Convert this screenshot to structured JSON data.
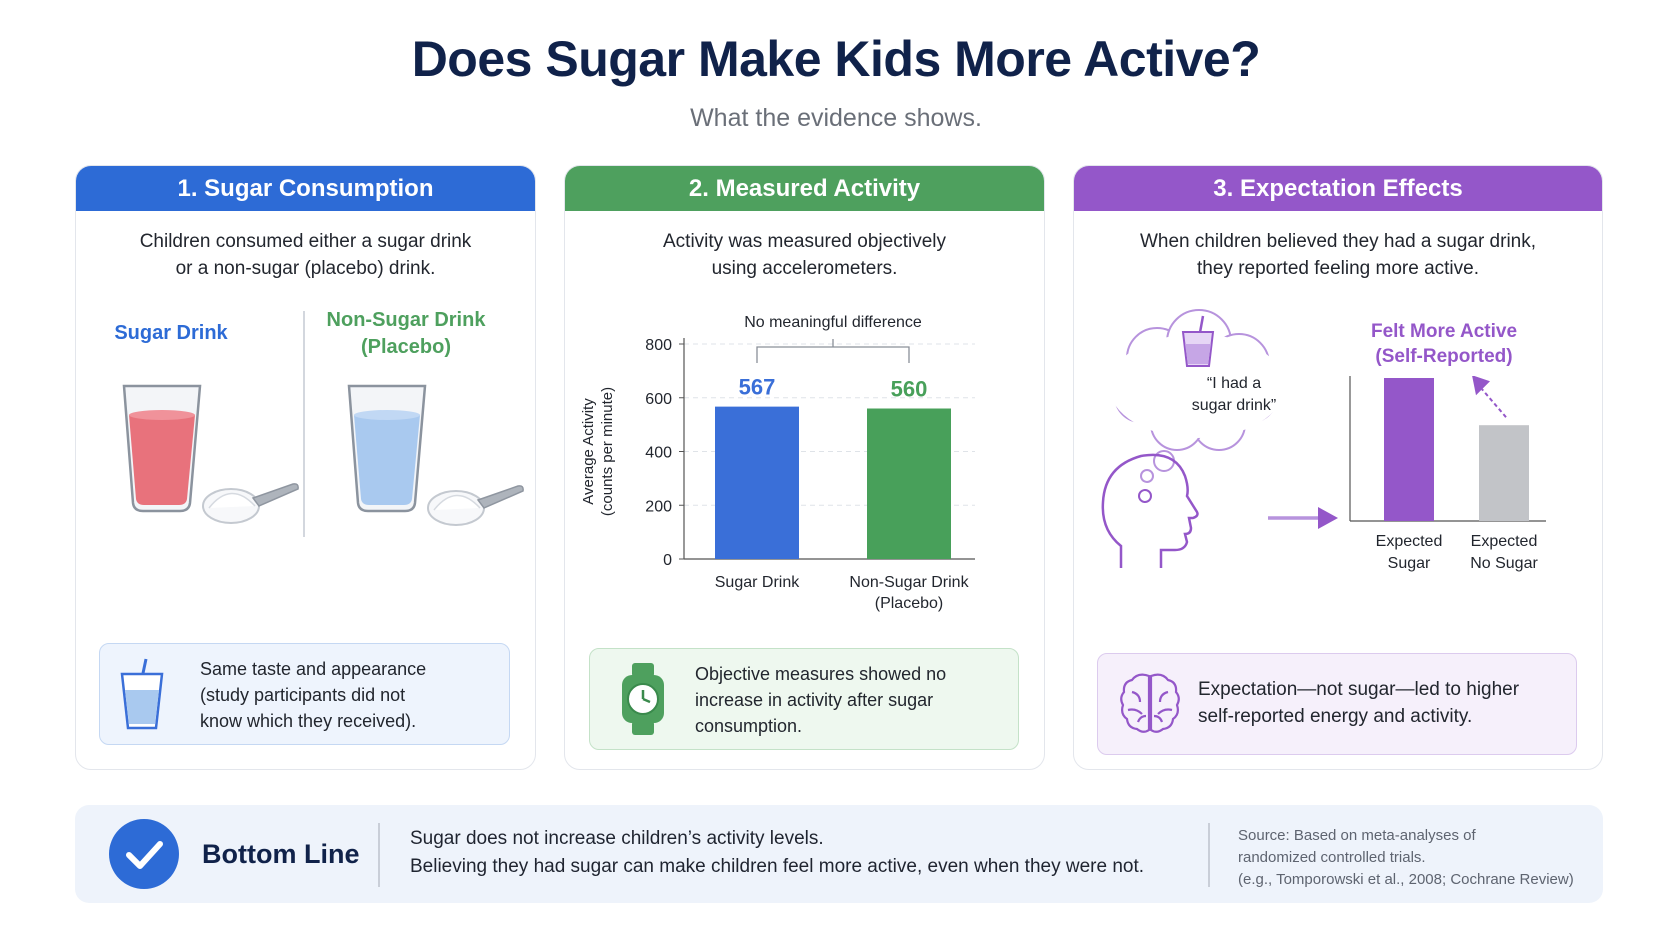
{
  "title": "Does Sugar Make Kids More Active?",
  "subtitle": "What the evidence shows.",
  "panels": [
    {
      "heading": "1. Sugar Consumption",
      "desc_lines": [
        "Children consumed either a sugar drink",
        "or a non-sugar (placebo) drink."
      ],
      "sugar_label": "Sugar Drink",
      "placebo_label_lines": [
        "Non-Sugar Drink",
        "(Placebo)"
      ],
      "callout_lines": [
        "Same taste and appearance",
        "(study participants did not",
        "know which they received)."
      ]
    },
    {
      "heading": "2. Measured Activity",
      "desc_lines": [
        "Activity was measured objectively",
        "using accelerometers."
      ],
      "callout_lines": [
        "Objective measures showed no",
        "increase in activity after sugar",
        "consumption."
      ]
    },
    {
      "heading": "3. Expectation Effects",
      "desc_lines": [
        "When children believed they had a sugar drink,",
        "they reported feeling more active."
      ],
      "thought_lines": [
        "“I had a",
        "sugar drink”"
      ],
      "chart_title_lines": [
        "Felt More Active",
        "(Self-Reported)"
      ],
      "callout_lines": [
        "Expectation—not sugar—led to higher",
        "self-reported energy and activity."
      ]
    }
  ],
  "chart_data": [
    {
      "type": "bar",
      "annotation": "No meaningful difference",
      "categories": [
        "Sugar Drink",
        "Non-Sugar Drink (Placebo)"
      ],
      "category_lines": [
        [
          "Sugar Drink"
        ],
        [
          "Non-Sugar Drink",
          "(Placebo)"
        ]
      ],
      "values": [
        567,
        560
      ],
      "value_labels": [
        "567",
        "560"
      ],
      "ylabel_lines": [
        "Average Activity",
        "(counts per minute)"
      ],
      "ylim": [
        0,
        800
      ],
      "yticks": [
        0,
        200,
        400,
        600,
        800
      ],
      "ytick_labels": [
        "0",
        "200",
        "400",
        "600",
        "800"
      ],
      "grid": true,
      "colors": [
        "#3a6fd8",
        "#48a05a"
      ]
    },
    {
      "type": "bar",
      "title": "Felt More Active (Self-Reported)",
      "categories": [
        "Expected Sugar",
        "Expected No Sugar"
      ],
      "category_lines": [
        [
          "Expected",
          "Sugar"
        ],
        [
          "Expected",
          "No Sugar"
        ]
      ],
      "values": [
        1.0,
        0.67
      ],
      "colors": [
        "#9457c9",
        "#c2c4c8"
      ]
    }
  ],
  "bottom": {
    "title": "Bottom Line",
    "lines": [
      "Sugar does not increase children’s activity levels.",
      "Believing they had sugar can make children feel more active, even when they were not."
    ],
    "source_lines": [
      "Source: Based on meta-analyses of",
      "randomized controlled trials.",
      "(e.g., Tomporowski et al., 2008; Cochrane Review)"
    ]
  },
  "colors": {
    "blue": "#2d6bd6",
    "green": "#4ea05e",
    "purple": "#9457c9",
    "navy": "#10224a"
  },
  "icons": [
    "sugar-drink-glass-icon",
    "placebo-glass-icon",
    "sugar-scoop-icon",
    "straw-cup-icon",
    "smartwatch-icon",
    "thought-cloud-icon",
    "head-profile-icon",
    "arrow-right-icon",
    "brain-icon",
    "checkmark-icon"
  ]
}
